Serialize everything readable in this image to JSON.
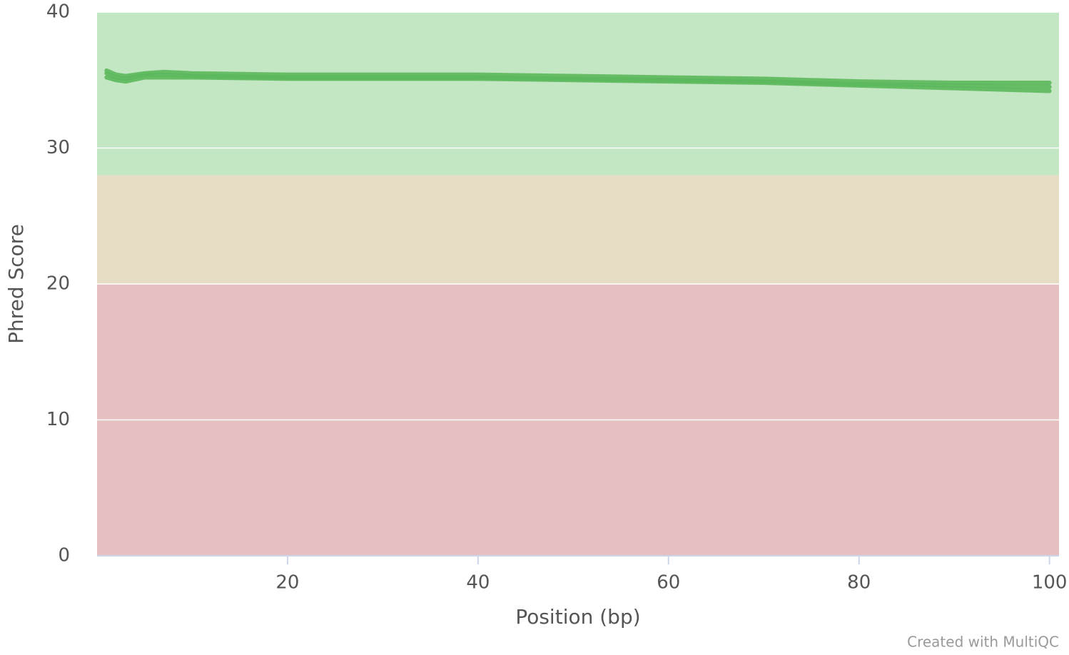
{
  "chart_data": {
    "type": "line",
    "y_label": "Phred Score",
    "x_label": "Position (bp)",
    "credit": "Created with MultiQC",
    "x": [
      1,
      2,
      3,
      5,
      7,
      10,
      20,
      30,
      40,
      50,
      60,
      70,
      80,
      90,
      100
    ],
    "series": [
      {
        "color": "#5cb85c",
        "values": [
          35.7,
          35.4,
          35.3,
          35.5,
          35.6,
          35.5,
          35.4,
          35.4,
          35.4,
          35.3,
          35.2,
          35.1,
          34.9,
          34.8,
          34.8
        ]
      },
      {
        "color": "#5cb85c",
        "values": [
          35.5,
          35.2,
          35.1,
          35.4,
          35.4,
          35.3,
          35.2,
          35.2,
          35.2,
          35.1,
          35.0,
          34.9,
          34.7,
          34.6,
          34.5
        ]
      },
      {
        "color": "#5cb85c",
        "values": [
          35.2,
          35.0,
          34.9,
          35.2,
          35.2,
          35.2,
          35.1,
          35.1,
          35.1,
          35.0,
          34.9,
          34.8,
          34.6,
          34.4,
          34.2
        ]
      }
    ],
    "bands": [
      {
        "from": 28,
        "to": 40,
        "color": "#c3e6c3"
      },
      {
        "from": 20,
        "to": 28,
        "color": "#e6dcc3"
      },
      {
        "from": 0,
        "to": 20,
        "color": "#e6c0c0"
      }
    ],
    "xlim": [
      0,
      101
    ],
    "ylim": [
      0,
      40
    ],
    "xticks": [
      20,
      40,
      60,
      80,
      100
    ],
    "yticks": [
      0,
      10,
      20,
      30,
      40
    ],
    "grid": true
  }
}
